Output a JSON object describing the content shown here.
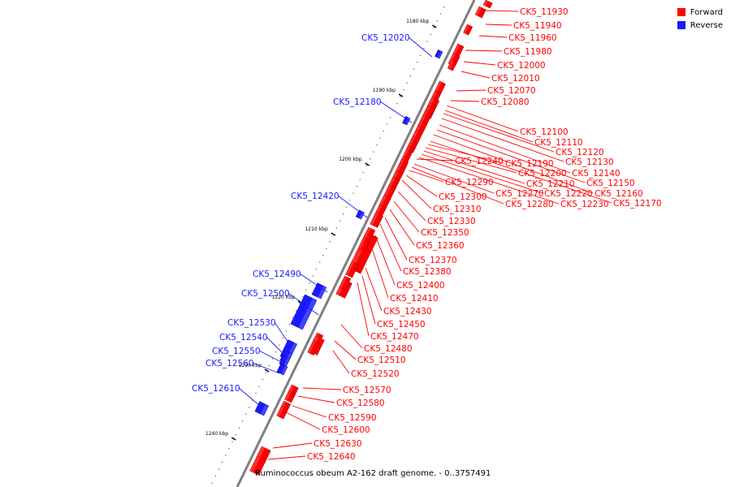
{
  "legend": {
    "forward": {
      "label": "Forward",
      "color": "#ff0000"
    },
    "reverse": {
      "label": "Reverse",
      "color": "#1a1aff"
    }
  },
  "caption": "Ruminococcus obeum A2-162 draft genome. - 0..3757491",
  "colors": {
    "forward": "#ff0000",
    "reverse": "#1a1aff",
    "backbone": "#808080"
  },
  "ticks": [
    {
      "label": "1180 kbp"
    },
    {
      "label": "1190 kbp"
    },
    {
      "label": "1200 kbp"
    },
    {
      "label": "1210 kbp"
    },
    {
      "label": "1220 kbp"
    },
    {
      "label": "1230 kbp"
    },
    {
      "label": "1240 kbp"
    }
  ],
  "genes": [
    {
      "label": "CK5_11930",
      "strand": "forward"
    },
    {
      "label": "CK5_11940",
      "strand": "forward"
    },
    {
      "label": "CK5_11960",
      "strand": "forward"
    },
    {
      "label": "CK5_11980",
      "strand": "forward"
    },
    {
      "label": "CK5_12000",
      "strand": "forward"
    },
    {
      "label": "CK5_12010",
      "strand": "forward"
    },
    {
      "label": "CK5_12020",
      "strand": "reverse"
    },
    {
      "label": "CK5_12070",
      "strand": "forward"
    },
    {
      "label": "CK5_12080",
      "strand": "forward"
    },
    {
      "label": "CK5_12180",
      "strand": "reverse"
    },
    {
      "label": "CK5_12100",
      "strand": "forward"
    },
    {
      "label": "CK5_12110",
      "strand": "forward"
    },
    {
      "label": "CK5_12120",
      "strand": "forward"
    },
    {
      "label": "CK5_12130",
      "strand": "forward"
    },
    {
      "label": "CK5_12140",
      "strand": "forward"
    },
    {
      "label": "CK5_12150",
      "strand": "forward"
    },
    {
      "label": "CK5_12160",
      "strand": "forward"
    },
    {
      "label": "CK5_12170",
      "strand": "forward"
    },
    {
      "label": "CK5_12190",
      "strand": "forward"
    },
    {
      "label": "CK5_12200",
      "strand": "forward"
    },
    {
      "label": "CK5_12210",
      "strand": "forward"
    },
    {
      "label": "CK5_12220",
      "strand": "forward"
    },
    {
      "label": "CK5_12230",
      "strand": "forward"
    },
    {
      "label": "CK5_12240",
      "strand": "forward"
    },
    {
      "label": "CK5_12270",
      "strand": "forward"
    },
    {
      "label": "CK5_12280",
      "strand": "forward"
    },
    {
      "label": "CK5_12290",
      "strand": "forward"
    },
    {
      "label": "CK5_12300",
      "strand": "forward"
    },
    {
      "label": "CK5_12310",
      "strand": "forward"
    },
    {
      "label": "CK5_12330",
      "strand": "forward"
    },
    {
      "label": "CK5_12350",
      "strand": "forward"
    },
    {
      "label": "CK5_12360",
      "strand": "forward"
    },
    {
      "label": "CK5_12370",
      "strand": "forward"
    },
    {
      "label": "CK5_12380",
      "strand": "forward"
    },
    {
      "label": "CK5_12400",
      "strand": "forward"
    },
    {
      "label": "CK5_12410",
      "strand": "forward"
    },
    {
      "label": "CK5_12420",
      "strand": "reverse"
    },
    {
      "label": "CK5_12430",
      "strand": "forward"
    },
    {
      "label": "CK5_12450",
      "strand": "forward"
    },
    {
      "label": "CK5_12470",
      "strand": "forward"
    },
    {
      "label": "CK5_12480",
      "strand": "forward"
    },
    {
      "label": "CK5_12490",
      "strand": "reverse"
    },
    {
      "label": "CK5_12500",
      "strand": "reverse"
    },
    {
      "label": "CK5_12510",
      "strand": "forward"
    },
    {
      "label": "CK5_12520",
      "strand": "forward"
    },
    {
      "label": "CK5_12530",
      "strand": "reverse"
    },
    {
      "label": "CK5_12540",
      "strand": "reverse"
    },
    {
      "label": "CK5_12550",
      "strand": "reverse"
    },
    {
      "label": "CK5_12560",
      "strand": "reverse"
    },
    {
      "label": "CK5_12570",
      "strand": "forward"
    },
    {
      "label": "CK5_12580",
      "strand": "forward"
    },
    {
      "label": "CK5_12590",
      "strand": "forward"
    },
    {
      "label": "CK5_12600",
      "strand": "forward"
    },
    {
      "label": "CK5_12610",
      "strand": "reverse"
    },
    {
      "label": "CK5_12630",
      "strand": "forward"
    },
    {
      "label": "CK5_12640",
      "strand": "forward"
    }
  ]
}
